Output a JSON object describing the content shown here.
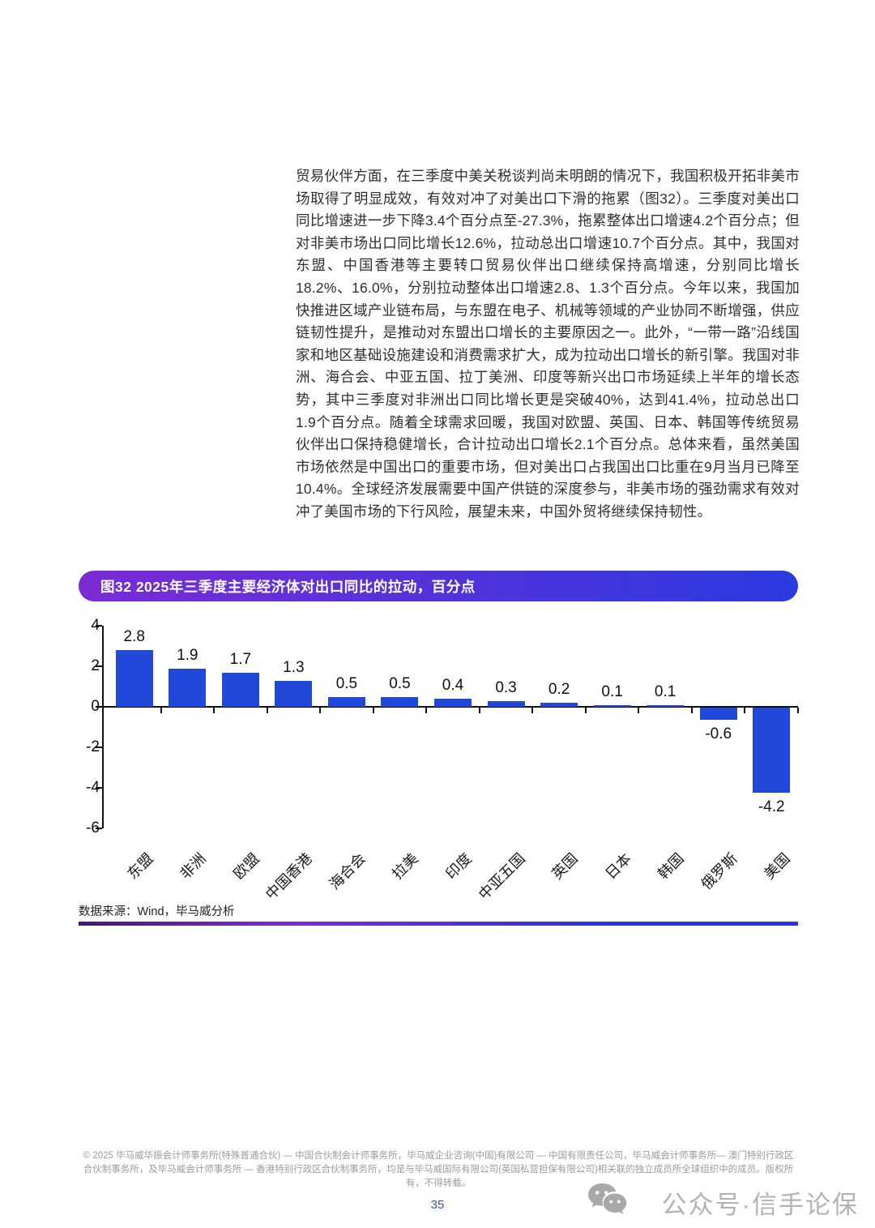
{
  "page": {
    "paragraph": "贸易伙伴方面，在三季度中美关税谈判尚未明朗的情况下，我国积极开拓非美市场取得了明显成效，有效对冲了对美出口下滑的拖累（图32）。三季度对美出口同比增速进一步下降3.4个百分点至-27.3%，拖累整体出口增速4.2个百分点；但对非美市场出口同比增长12.6%，拉动总出口增速10.7个百分点。其中，我国对东盟、中国香港等主要转口贸易伙伴出口继续保持高增速，分别同比增长18.2%、16.0%，分别拉动整体出口增速2.8、1.3个百分点。今年以来，我国加快推进区域产业链布局，与东盟在电子、机械等领域的产业协同不断增强，供应链韧性提升，是推动对东盟出口增长的主要原因之一。此外，“一带一路”沿线国家和地区基础设施建设和消费需求扩大，成为拉动出口增长的新引擎。我国对非洲、海合会、中亚五国、拉丁美洲、印度等新兴出口市场延续上半年的增长态势，其中三季度对非洲出口同比增长更是突破40%，达到41.4%，拉动总出口1.9个百分点。随着全球需求回暖，我国对欧盟、英国、日本、韩国等传统贸易伙伴出口保持稳健增长，合计拉动出口增长2.1个百分点。总体来看，虽然美国市场依然是中国出口的重要市场，但对美出口占我国出口比重在9月当月已降至10.4%。全球经济发展需要中国产供链的深度参与，非美市场的强劲需求有效对冲了美国市场的下行风险，展望未来，中国外贸将继续保持韧性。"
  },
  "chart": {
    "title": "图32 2025年三季度主要经济体对出口同比的拉动，百分点",
    "source": "数据来源：Wind，毕马威分析"
  },
  "chart_data": {
    "type": "bar",
    "title": "图32 2025年三季度主要经济体对出口同比的拉动，百分点",
    "categories": [
      "东盟",
      "非洲",
      "欧盟",
      "中国香港",
      "海合会",
      "拉美",
      "印度",
      "中亚五国",
      "英国",
      "日本",
      "韩国",
      "俄罗斯",
      "美国"
    ],
    "values": [
      2.8,
      1.9,
      1.7,
      1.3,
      0.5,
      0.5,
      0.4,
      0.3,
      0.2,
      0.1,
      0.1,
      -0.6,
      -4.2
    ],
    "ylim": [
      -6,
      4
    ],
    "yticks": [
      4,
      2,
      0,
      -2,
      -4,
      -6
    ],
    "xlabel": "",
    "ylabel": "",
    "grid": false,
    "legend": "none",
    "bar_color": "#2148d8",
    "source": "数据来源：Wind，毕马威分析"
  },
  "footer": {
    "legal": "© 2025 毕马威华振会计师事务所(特殊普通合伙) — 中国合伙制会计师事务所，毕马威企业咨询(中国)有限公司 — 中国有限责任公司，毕马威会计师事务所— 澳门特别行政区合伙制事务所，及毕马威会计师事务所 — 香港特别行政区合伙制事务所，均是与毕马威国际有限公司(英国私营担保有限公司)相关联的独立成员所全球组织中的成员。版权所有，不得转载。",
    "page_number": "35",
    "watermark": "公众号·信手论保"
  },
  "theme": {
    "banner_gradient_from": "#7b2bd4",
    "banner_gradient_to": "#2b3ae0",
    "rule_gradient_from": "#41196e",
    "rule_gradient_mid": "#7b2bd4",
    "rule_gradient_to": "#2638d8",
    "bar_color": "#2148d8",
    "page_number_color": "#2e5e9c"
  }
}
